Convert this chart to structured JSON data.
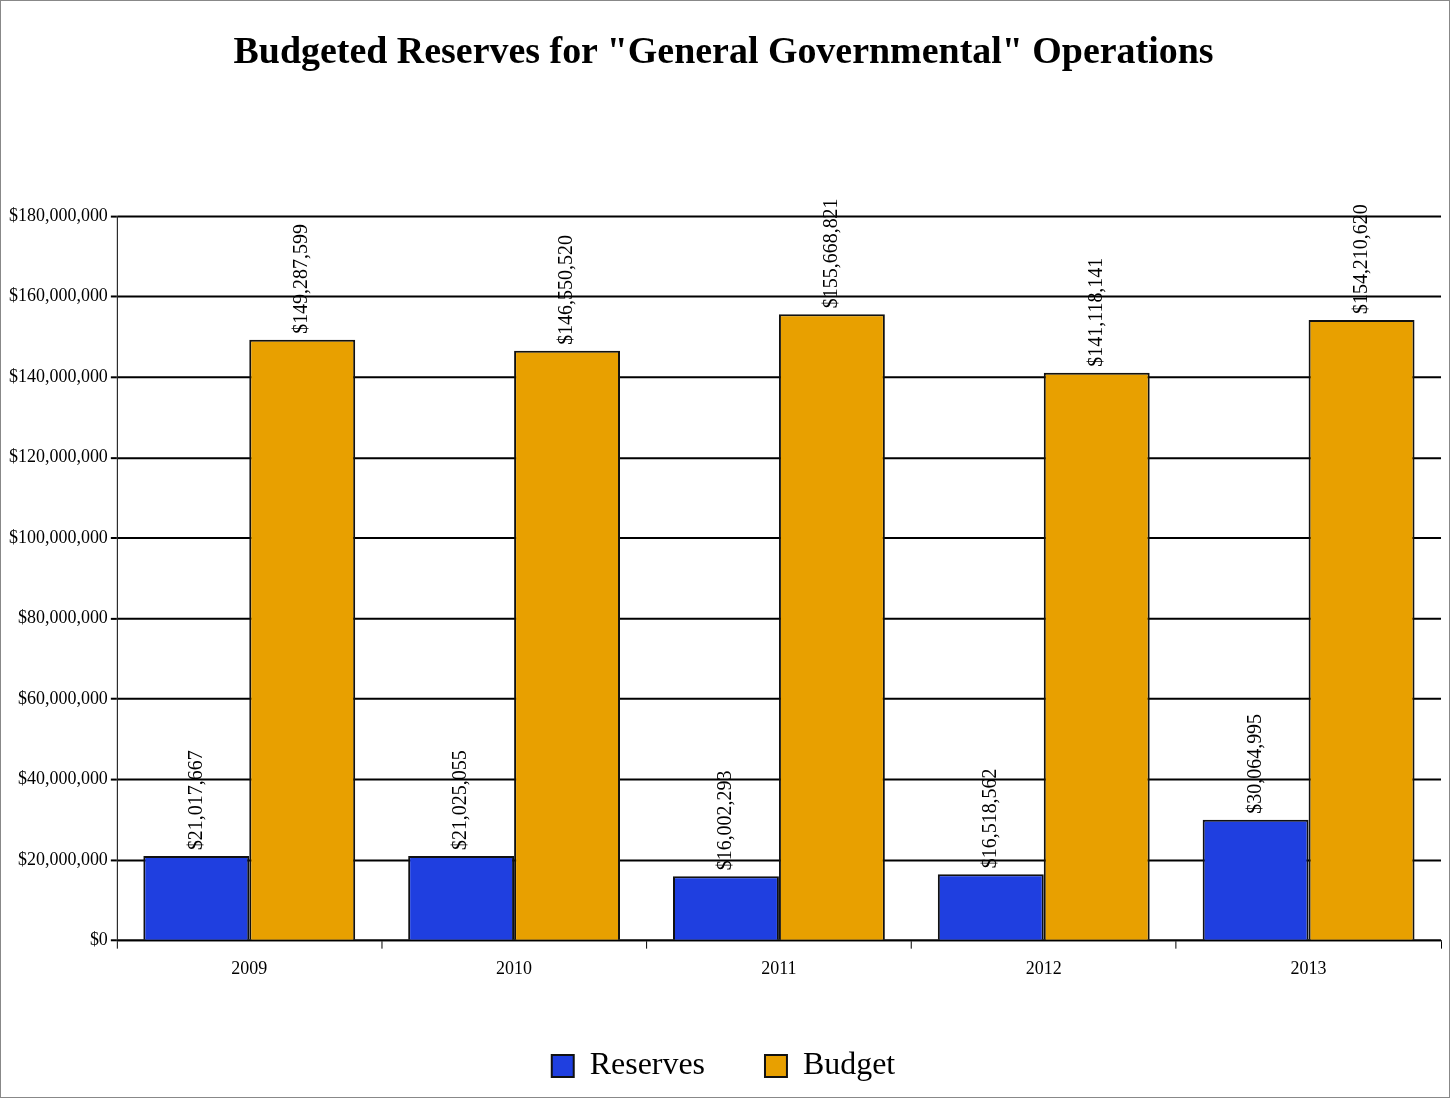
{
  "chart_data": {
    "type": "bar",
    "title": "Budgeted Reserves for \"General Governmental\" Operations",
    "categories": [
      "2009",
      "2010",
      "2011",
      "2012",
      "2013"
    ],
    "series": [
      {
        "name": "Reserves",
        "color": "#1f3fe0",
        "values": [
          21017667,
          21025055,
          16002293,
          16518562,
          30064995
        ],
        "value_labels": [
          "$21,017,667",
          "$21,025,055",
          "$16,002,293",
          "$16,518,562",
          "$30,064,995"
        ]
      },
      {
        "name": "Budget",
        "color": "#e8a000",
        "values": [
          149287599,
          146550520,
          155668821,
          141118141,
          154210620
        ],
        "value_labels": [
          "$149,287,599",
          "$146,550,520",
          "$155,668,821",
          "$141,118,141",
          "$154,210,620"
        ]
      }
    ],
    "ylim": [
      0,
      180000000
    ],
    "yticks": [
      {
        "value": 0,
        "label": "$0"
      },
      {
        "value": 20000000,
        "label": "$20,000,000"
      },
      {
        "value": 40000000,
        "label": "$40,000,000"
      },
      {
        "value": 60000000,
        "label": "$60,000,000"
      },
      {
        "value": 80000000,
        "label": "$80,000,000"
      },
      {
        "value": 100000000,
        "label": "$100,000,000"
      },
      {
        "value": 120000000,
        "label": "$120,000,000"
      },
      {
        "value": 140000000,
        "label": "$140,000,000"
      },
      {
        "value": 160000000,
        "label": "$160,000,000"
      },
      {
        "value": 180000000,
        "label": "$180,000,000"
      }
    ],
    "grid": "y",
    "legend": "bottom"
  }
}
